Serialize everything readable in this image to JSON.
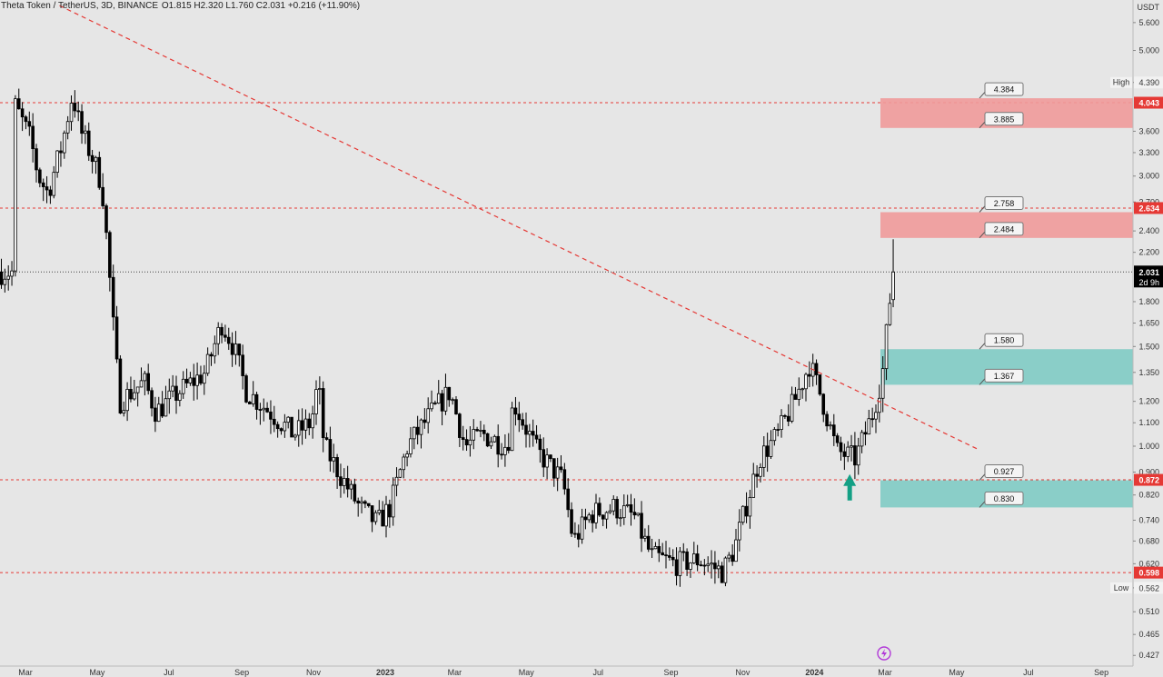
{
  "header": {
    "pair": "Theta Token / TetherUS, 3D, BINANCE",
    "ohlc": "O1.815 H2.320 L1.760 C2.031 +0.216 (+11.90%)"
  },
  "axis": {
    "currency": "USDT",
    "scale": "log",
    "y_ticks": [
      "5.600",
      "5.000",
      "4.390",
      "3.600",
      "3.300",
      "3.000",
      "2.700",
      "2.400",
      "2.200",
      "1.800",
      "1.650",
      "1.500",
      "1.350",
      "1.200",
      "1.100",
      "1.000",
      "0.900",
      "0.820",
      "0.740",
      "0.680",
      "0.620",
      "0.562",
      "0.510",
      "0.465",
      "0.427"
    ],
    "x_ticks": [
      "Mar",
      "May",
      "Jul",
      "Sep",
      "Nov",
      "2023",
      "Mar",
      "May",
      "Jul",
      "Sep",
      "Nov",
      "2024",
      "Mar",
      "May",
      "Jul",
      "Sep"
    ]
  },
  "markers": {
    "high_label": "High",
    "high_value": "4.390",
    "low_label": "Low",
    "low_value": "0.562",
    "last_price": "2.031",
    "countdown": "2d 9h"
  },
  "price_lines": [
    {
      "value": "4.043",
      "color": "#e53935"
    },
    {
      "value": "2.634",
      "color": "#e53935"
    },
    {
      "value": "0.872",
      "color": "#e53935"
    },
    {
      "value": "0.598",
      "color": "#e53935"
    }
  ],
  "zones": [
    {
      "kind": "resistance",
      "top": 4.384,
      "bottom": 3.885,
      "top_label": "4.384",
      "bottom_label": "3.885",
      "color": "#ef9a9a"
    },
    {
      "kind": "resistance",
      "top": 2.758,
      "bottom": 2.484,
      "top_label": "2.758",
      "bottom_label": "2.484",
      "color": "#ef9a9a"
    },
    {
      "kind": "support",
      "top": 1.58,
      "bottom": 1.367,
      "top_label": "1.580",
      "bottom_label": "1.367",
      "color": "#80cbc4"
    },
    {
      "kind": "support",
      "top": 0.927,
      "bottom": 0.83,
      "top_label": "0.927",
      "bottom_label": "0.830",
      "color": "#80cbc4"
    }
  ],
  "chart_data": {
    "type": "candlestick",
    "title": "Theta Token / TetherUS, 3D, BINANCE",
    "y_scale": "log",
    "ylim": [
      0.41,
      6.1
    ],
    "x_range": [
      "2022-02-20",
      "2024-09-30"
    ],
    "last_close": 2.031,
    "all_time_high_in_view": 4.39,
    "all_time_low_in_view": 0.562,
    "trendline": {
      "from": {
        "date": "2022-03-30",
        "price": 6.0
      },
      "to": {
        "date": "2024-05-18",
        "price": 0.99
      },
      "style": "dashed",
      "color": "#e53935"
    },
    "arrow": {
      "date": "2024-01-31",
      "price": 0.79,
      "direction": "up",
      "color": "#14a085"
    },
    "path": [
      {
        "date": "2022-02-20",
        "price": 4.0
      },
      {
        "date": "2022-03-05",
        "price": 3.5
      },
      {
        "date": "2022-03-12",
        "price": 3.0
      },
      {
        "date": "2022-03-20",
        "price": 2.8
      },
      {
        "date": "2022-04-01",
        "price": 3.4
      },
      {
        "date": "2022-04-10",
        "price": 4.2
      },
      {
        "date": "2022-04-17",
        "price": 3.6
      },
      {
        "date": "2022-04-28",
        "price": 3.2
      },
      {
        "date": "2022-05-05",
        "price": 2.9
      },
      {
        "date": "2022-05-10",
        "price": 2.2
      },
      {
        "date": "2022-05-15",
        "price": 1.6
      },
      {
        "date": "2022-05-20",
        "price": 1.2
      },
      {
        "date": "2022-06-10",
        "price": 1.3
      },
      {
        "date": "2022-06-20",
        "price": 1.15
      },
      {
        "date": "2022-07-10",
        "price": 1.25
      },
      {
        "date": "2022-08-01",
        "price": 1.35
      },
      {
        "date": "2022-08-15",
        "price": 1.65
      },
      {
        "date": "2022-08-25",
        "price": 1.5
      },
      {
        "date": "2022-09-05",
        "price": 1.25
      },
      {
        "date": "2022-09-25",
        "price": 1.15
      },
      {
        "date": "2022-10-15",
        "price": 1.05
      },
      {
        "date": "2022-10-30",
        "price": 1.1
      },
      {
        "date": "2022-11-05",
        "price": 1.3
      },
      {
        "date": "2022-11-10",
        "price": 1.0
      },
      {
        "date": "2022-11-25",
        "price": 0.88
      },
      {
        "date": "2022-12-10",
        "price": 0.78
      },
      {
        "date": "2022-12-25",
        "price": 0.73
      },
      {
        "date": "2023-01-05",
        "price": 0.78
      },
      {
        "date": "2023-01-20",
        "price": 1.0
      },
      {
        "date": "2023-02-10",
        "price": 1.15
      },
      {
        "date": "2023-02-25",
        "price": 1.25
      },
      {
        "date": "2023-03-10",
        "price": 1.0
      },
      {
        "date": "2023-03-25",
        "price": 1.05
      },
      {
        "date": "2023-04-15",
        "price": 1.0
      },
      {
        "date": "2023-04-20",
        "price": 1.2
      },
      {
        "date": "2023-05-10",
        "price": 0.98
      },
      {
        "date": "2023-06-01",
        "price": 0.87
      },
      {
        "date": "2023-06-10",
        "price": 0.68
      },
      {
        "date": "2023-06-25",
        "price": 0.76
      },
      {
        "date": "2023-07-15",
        "price": 0.78
      },
      {
        "date": "2023-08-01",
        "price": 0.75
      },
      {
        "date": "2023-08-15",
        "price": 0.64
      },
      {
        "date": "2023-09-05",
        "price": 0.62
      },
      {
        "date": "2023-09-25",
        "price": 0.63
      },
      {
        "date": "2023-10-15",
        "price": 0.6
      },
      {
        "date": "2023-10-25",
        "price": 0.66
      },
      {
        "date": "2023-11-05",
        "price": 0.8
      },
      {
        "date": "2023-11-15",
        "price": 0.95
      },
      {
        "date": "2023-12-01",
        "price": 1.05
      },
      {
        "date": "2023-12-15",
        "price": 1.2
      },
      {
        "date": "2023-12-28",
        "price": 1.4
      },
      {
        "date": "2024-01-08",
        "price": 1.2
      },
      {
        "date": "2024-01-20",
        "price": 0.98
      },
      {
        "date": "2024-02-05",
        "price": 0.95
      },
      {
        "date": "2024-02-20",
        "price": 1.15
      },
      {
        "date": "2024-02-28",
        "price": 1.35
      },
      {
        "date": "2024-03-05",
        "price": 1.8
      },
      {
        "date": "2024-03-08",
        "price": 2.031
      }
    ]
  }
}
